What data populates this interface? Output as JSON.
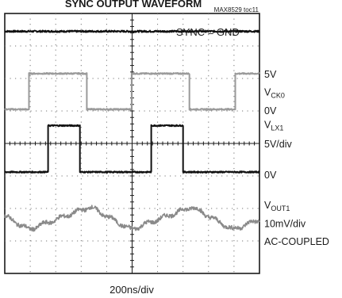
{
  "chart_data": {
    "type": "line",
    "title": "SYNC OUTPUT WAVEFORM",
    "figure_id": "MAX8529 toc11",
    "annotation": "SYNC = GND",
    "xlabel": "200ns/div",
    "divisions": {
      "x": 10,
      "y": 8
    },
    "grid": "dotted",
    "x_range_div": [
      0,
      10
    ],
    "y_range_div": [
      0,
      8
    ],
    "series": [
      {
        "trace_name": "ref-level",
        "color": "#111111",
        "shape": "flat",
        "level_div": 7.45,
        "noise_div": 0.025
      },
      {
        "trace_name": "vck0",
        "color": "#9a9a9a",
        "shape": "square",
        "high_div": 6.15,
        "low_div": 5.05,
        "start_state": "low",
        "edges_div": [
          0.95,
          3.22,
          4.98,
          7.25,
          9.05
        ],
        "noise_div": 0.02,
        "labels": [
          {
            "text": "5V",
            "sub": ""
          },
          {
            "text": "V",
            "sub": "CK0"
          },
          {
            "text": "0V",
            "sub": ""
          }
        ]
      },
      {
        "trace_name": "vlx1",
        "color": "#111111",
        "shape": "square",
        "high_div": 4.55,
        "low_div": 3.12,
        "start_state": "low",
        "edges_div": [
          1.7,
          2.95,
          5.75,
          7.0
        ],
        "noise_div": 0.02,
        "labels": [
          {
            "text": "V",
            "sub": "LX1"
          },
          {
            "text": "5V/div",
            "sub": ""
          },
          {
            "text": "0V",
            "sub": ""
          }
        ]
      },
      {
        "trace_name": "vout1",
        "color": "#8a8a8a",
        "shape": "ripple",
        "mean_div": 1.7,
        "amplitude_div": 0.35,
        "period_div": 4.0,
        "phase_div": 0.95,
        "noise_div": 0.06,
        "labels": [
          {
            "text": "V",
            "sub": "OUT1"
          },
          {
            "text": "10mV/div",
            "sub": ""
          },
          {
            "text": "AC-COUPLED",
            "sub": ""
          }
        ]
      }
    ]
  }
}
